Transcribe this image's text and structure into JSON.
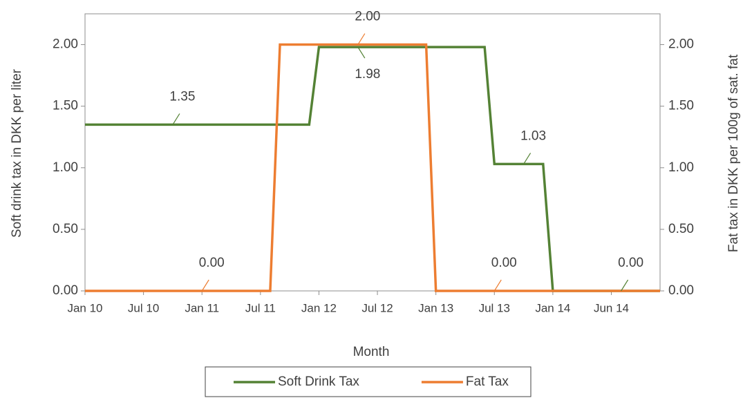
{
  "chart_data": {
    "type": "line",
    "x_label": "Month",
    "y_label": "Soft drink tax in DKK per liter",
    "y2_label": "Fat tax in DKK per 100g of sat. fat",
    "categories": [
      "Jan 10",
      null,
      null,
      null,
      null,
      null,
      "Jul 10",
      null,
      null,
      null,
      null,
      null,
      "Jan 11",
      null,
      null,
      null,
      null,
      null,
      "Jul 11",
      null,
      null,
      null,
      null,
      null,
      "Jan 12",
      null,
      null,
      null,
      null,
      null,
      "Jul 12",
      null,
      null,
      null,
      null,
      null,
      "Jan 13",
      null,
      null,
      null,
      null,
      null,
      "Jul 13",
      null,
      null,
      null,
      null,
      null,
      "Jan 14",
      null,
      null,
      null,
      null,
      null,
      "Jun 14",
      null,
      null,
      null,
      null,
      null
    ],
    "ylim": [
      0,
      2.25
    ],
    "yticks": [
      {
        "value": 0,
        "label": "0.00"
      },
      {
        "value": 0.5,
        "label": "0.50"
      },
      {
        "value": 1,
        "label": "1.00"
      },
      {
        "value": 1.5,
        "label": "1.50"
      },
      {
        "value": 2,
        "label": "2.00"
      }
    ],
    "y2lim": [
      0,
      2.25
    ],
    "y2ticks": [
      {
        "value": 0,
        "label": "0.00"
      },
      {
        "value": 0.5,
        "label": "0.50"
      },
      {
        "value": 1,
        "label": "1.00"
      },
      {
        "value": 1.5,
        "label": "1.50"
      },
      {
        "value": 2,
        "label": "2.00"
      }
    ],
    "legend": "bottom",
    "series": [
      {
        "name": "Soft Drink Tax",
        "color": "#548235",
        "values": [
          1.35,
          1.35,
          1.35,
          1.35,
          1.35,
          1.35,
          1.35,
          1.35,
          1.35,
          1.35,
          1.35,
          1.35,
          1.35,
          1.35,
          1.35,
          1.35,
          1.35,
          1.35,
          1.35,
          1.35,
          1.35,
          1.35,
          1.35,
          1.35,
          1.98,
          1.98,
          1.98,
          1.98,
          1.98,
          1.98,
          1.98,
          1.98,
          1.98,
          1.98,
          1.98,
          1.98,
          1.98,
          1.98,
          1.98,
          1.98,
          1.98,
          1.98,
          1.03,
          1.03,
          1.03,
          1.03,
          1.03,
          1.03,
          0,
          0,
          0,
          0,
          0,
          0,
          0,
          0,
          0,
          0,
          0,
          0
        ],
        "value_labels": [
          null,
          null,
          null,
          null,
          null,
          null,
          null,
          null,
          null,
          "1.35",
          null,
          null,
          null,
          null,
          null,
          null,
          null,
          null,
          null,
          null,
          null,
          null,
          null,
          null,
          null,
          null,
          null,
          null,
          "1.98",
          null,
          null,
          null,
          null,
          null,
          null,
          null,
          null,
          null,
          null,
          null,
          null,
          null,
          null,
          null,
          null,
          "1.03",
          null,
          null,
          null,
          null,
          null,
          null,
          null,
          null,
          null,
          "0.00",
          null,
          null,
          null,
          null
        ]
      },
      {
        "name": "Fat Tax",
        "color": "#ED7D31",
        "axis": "y2",
        "values": [
          0,
          0,
          0,
          0,
          0,
          0,
          0,
          0,
          0,
          0,
          0,
          0,
          0,
          0,
          0,
          0,
          0,
          0,
          0,
          0,
          2,
          2,
          2,
          2,
          2,
          2,
          2,
          2,
          2,
          2,
          2,
          2,
          2,
          2,
          2,
          2,
          0,
          0,
          0,
          0,
          0,
          0,
          0,
          0,
          0,
          0,
          0,
          0,
          0,
          0,
          0,
          0,
          0,
          0,
          0,
          0,
          0,
          0,
          0,
          0
        ],
        "value_labels": [
          null,
          null,
          null,
          null,
          null,
          null,
          null,
          null,
          null,
          null,
          null,
          null,
          "0.00",
          null,
          null,
          null,
          null,
          null,
          null,
          null,
          null,
          null,
          null,
          null,
          null,
          null,
          null,
          null,
          "2.00",
          null,
          null,
          null,
          null,
          null,
          null,
          null,
          null,
          null,
          null,
          null,
          null,
          null,
          "0.00",
          null,
          null,
          null,
          null,
          null,
          null,
          null,
          null,
          null,
          null,
          null,
          null,
          null,
          null,
          null,
          null,
          null
        ]
      }
    ]
  }
}
